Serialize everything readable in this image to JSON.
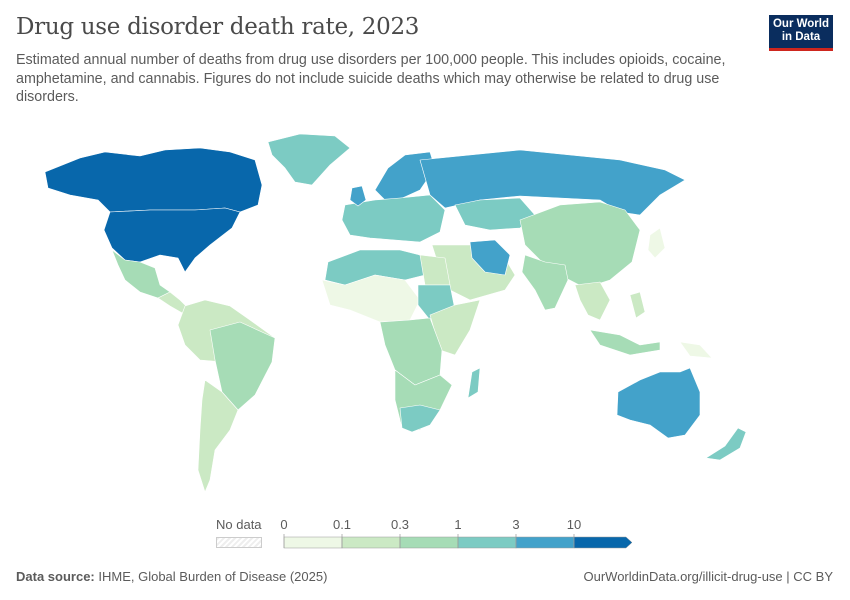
{
  "header": {
    "title": "Drug use disorder death rate, 2023",
    "subtitle": "Estimated annual number of deaths from drug use disorders per 100,000 people. This includes opioids, cocaine, amphetamine, and cannabis. Figures do not include suicide deaths which may otherwise be related to drug use disorders.",
    "logo_text": "Our World in Data"
  },
  "legend": {
    "no_data_label": "No data",
    "ticks": [
      "0",
      "0.1",
      "0.3",
      "1",
      "3",
      "10"
    ],
    "colors": [
      "#eef8e6",
      "#cbe9c4",
      "#a6dcb6",
      "#7ccbc3",
      "#43a2ca",
      "#0867ab"
    ]
  },
  "footer": {
    "source_label": "Data source:",
    "source_text": "IHME, Global Burden of Disease (2025)",
    "url_license": "OurWorldinData.org/illicit-drug-use | CC BY"
  }
}
